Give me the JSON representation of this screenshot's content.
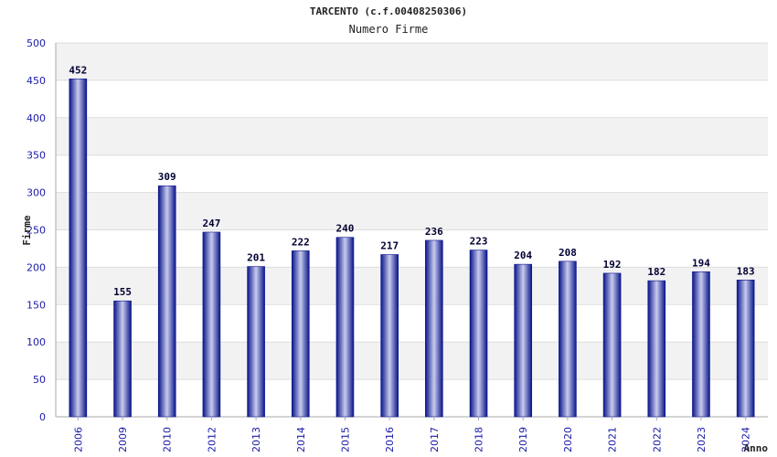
{
  "chart_data": {
    "type": "bar",
    "title": "TARCENTO (c.f.00408250306)",
    "subtitle": "Numero Firme",
    "xlabel": "Anno",
    "ylabel": "Firme",
    "ylim": [
      0,
      500
    ],
    "yticks": [
      0,
      50,
      100,
      150,
      200,
      250,
      300,
      350,
      400,
      450,
      500
    ],
    "grid": true,
    "categories": [
      "2006",
      "2009",
      "2010",
      "2012",
      "2013",
      "2014",
      "2015",
      "2016",
      "2017",
      "2018",
      "2019",
      "2020",
      "2021",
      "2022",
      "2023",
      "2024"
    ],
    "values": [
      452,
      155,
      309,
      247,
      201,
      222,
      240,
      217,
      236,
      223,
      204,
      208,
      192,
      182,
      194,
      183
    ],
    "colors": {
      "bar_edge": "#0a148a",
      "bar_center": "#c8ccee",
      "band": "#f2f2f2",
      "grid": "#dddddd",
      "tick_text": "#1a1aa8",
      "value_text": "#000033"
    }
  }
}
